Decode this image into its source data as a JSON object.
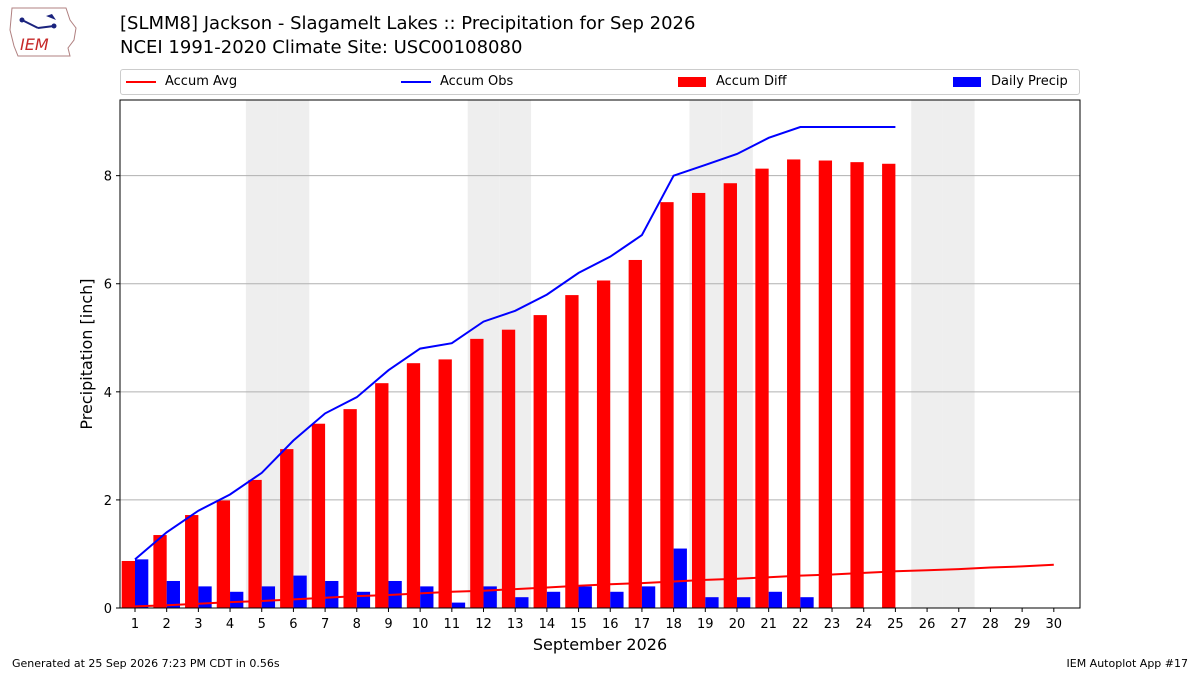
{
  "header": {
    "title_line1": "[SLMM8] Jackson - Slagamelt Lakes :: Precipitation for Sep 2026",
    "title_line2": "NCEI 1991-2020 Climate Site: USC00108080",
    "logo_text": "IEM"
  },
  "footer": {
    "generated": "Generated at 25 Sep 2026 7:23 PM CDT in 0.56s",
    "app": "IEM Autoplot App #17"
  },
  "colors": {
    "accum_avg": "#ff0000",
    "accum_obs": "#0000ff",
    "accum_diff": "#ff0000",
    "daily_precip": "#0000ff",
    "weekend_shade": "#eeeeee",
    "grid": "#b0b0b0"
  },
  "chart_data": {
    "type": "bar",
    "xlabel": "September 2026",
    "ylabel": "Precipitation [inch]",
    "ylim": [
      0,
      9.4
    ],
    "yticks": [
      0,
      2,
      4,
      6,
      8
    ],
    "grid": "horizontal",
    "legend_position": "top",
    "categories": [
      "1",
      "2",
      "3",
      "4",
      "5",
      "6",
      "7",
      "8",
      "9",
      "10",
      "11",
      "12",
      "13",
      "14",
      "15",
      "16",
      "17",
      "18",
      "19",
      "20",
      "21",
      "22",
      "23",
      "24",
      "25",
      "26",
      "27",
      "28",
      "29",
      "30"
    ],
    "weekend_days": [
      5,
      6,
      12,
      13,
      19,
      20,
      26,
      27
    ],
    "series": [
      {
        "name": "Accum Avg",
        "kind": "line",
        "values": [
          0.03,
          0.05,
          0.08,
          0.11,
          0.13,
          0.16,
          0.19,
          0.22,
          0.24,
          0.27,
          0.3,
          0.32,
          0.35,
          0.38,
          0.41,
          0.44,
          0.46,
          0.49,
          0.52,
          0.54,
          0.57,
          0.6,
          0.62,
          0.65,
          0.68,
          0.7,
          0.72,
          0.75,
          0.77,
          0.8
        ]
      },
      {
        "name": "Accum Obs",
        "kind": "line",
        "values": [
          0.9,
          1.4,
          1.8,
          2.1,
          2.5,
          3.1,
          3.6,
          3.9,
          4.4,
          4.8,
          4.9,
          5.3,
          5.5,
          5.8,
          6.2,
          6.5,
          6.9,
          8.0,
          8.2,
          8.4,
          8.7,
          8.9,
          8.9,
          8.9,
          8.9,
          null,
          null,
          null,
          null,
          null
        ]
      },
      {
        "name": "Accum Diff",
        "kind": "bar",
        "values": [
          0.87,
          1.35,
          1.72,
          1.99,
          2.37,
          2.94,
          3.41,
          3.68,
          4.16,
          4.53,
          4.6,
          4.98,
          5.15,
          5.42,
          5.79,
          6.06,
          6.44,
          7.51,
          7.68,
          7.86,
          8.13,
          8.3,
          8.28,
          8.25,
          8.22,
          null,
          null,
          null,
          null,
          null
        ]
      },
      {
        "name": "Daily Precip",
        "kind": "bar",
        "values": [
          0.9,
          0.5,
          0.4,
          0.3,
          0.4,
          0.6,
          0.5,
          0.3,
          0.5,
          0.4,
          0.1,
          0.4,
          0.2,
          0.3,
          0.4,
          0.3,
          0.4,
          1.1,
          0.2,
          0.2,
          0.3,
          0.2,
          0.0,
          0.0,
          0.0,
          null,
          null,
          null,
          null,
          null
        ]
      }
    ]
  }
}
